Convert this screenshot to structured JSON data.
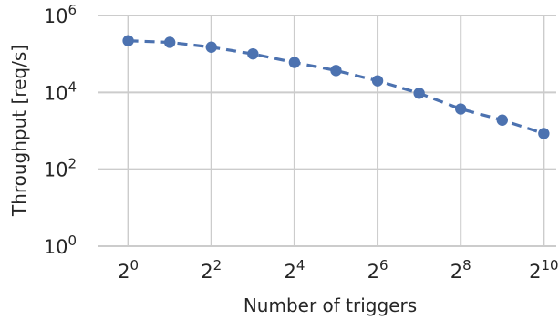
{
  "chart_data": {
    "type": "line",
    "xlabel": "Number of triggers",
    "ylabel": "Throughput [req/s]",
    "x_scale": "log2",
    "y_scale": "log10",
    "xlim": [
      0.6,
      1260
    ],
    "ylim": [
      1,
      1000000
    ],
    "xticks": [
      {
        "value": 1,
        "base": "2",
        "exp": "0"
      },
      {
        "value": 4,
        "base": "2",
        "exp": "2"
      },
      {
        "value": 16,
        "base": "2",
        "exp": "4"
      },
      {
        "value": 64,
        "base": "2",
        "exp": "6"
      },
      {
        "value": 256,
        "base": "2",
        "exp": "8"
      },
      {
        "value": 1024,
        "base": "2",
        "exp": "10"
      }
    ],
    "yticks": [
      {
        "value": 1,
        "base": "10",
        "exp": "0"
      },
      {
        "value": 100,
        "base": "10",
        "exp": "2"
      },
      {
        "value": 10000,
        "base": "10",
        "exp": "4"
      },
      {
        "value": 1000000,
        "base": "10",
        "exp": "6"
      }
    ],
    "grid": true,
    "series": [
      {
        "color": "#4c72b0",
        "marker": "circle",
        "linestyle": "dashed",
        "x": [
          1,
          2,
          4,
          8,
          16,
          32,
          64,
          128,
          256,
          512,
          1024
        ],
        "y": [
          220000,
          200000,
          150000,
          100000,
          60000,
          37000,
          20000,
          9500,
          3700,
          1900,
          850
        ]
      }
    ]
  }
}
